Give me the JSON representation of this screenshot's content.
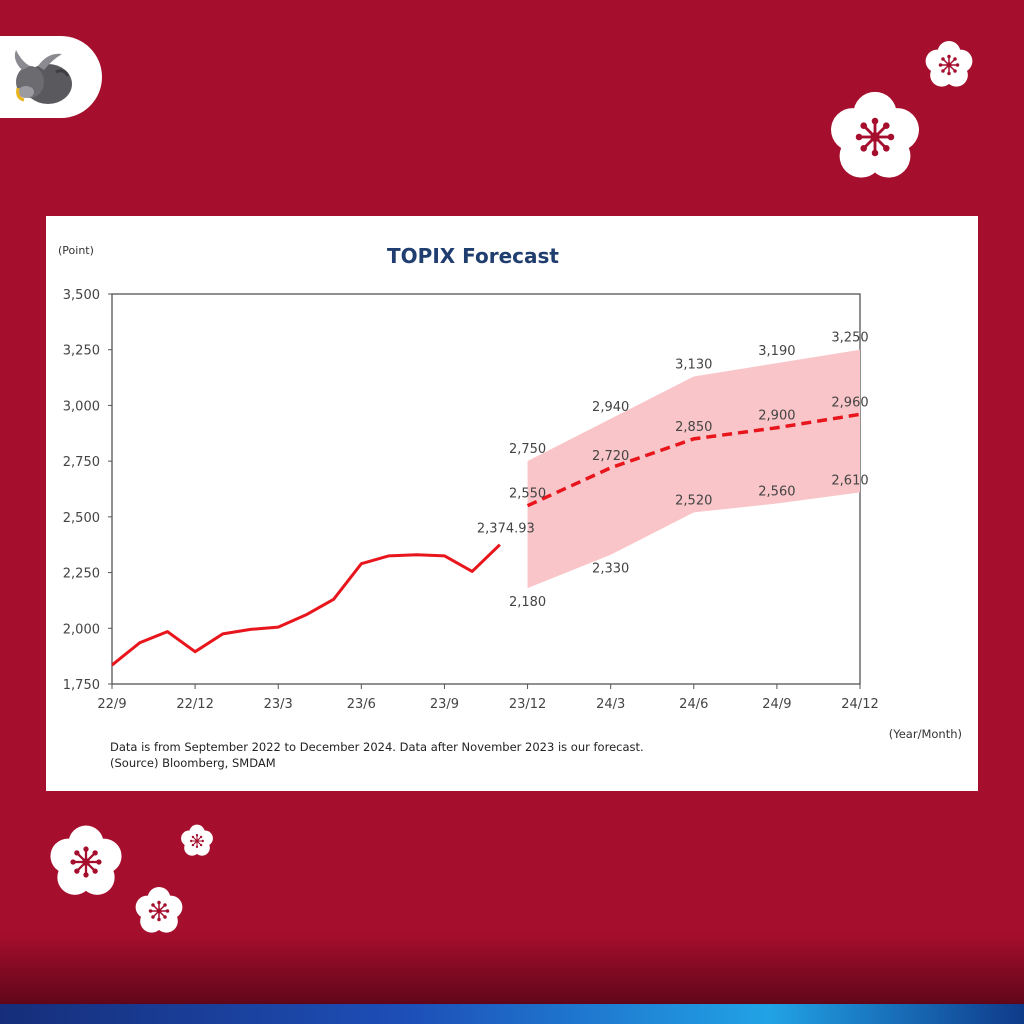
{
  "chart_data": {
    "type": "line",
    "title": "TOPIX Forecast",
    "ylabel": "(Point)",
    "xlabel": "(Year/Month)",
    "ylim": [
      1750,
      3500
    ],
    "yticks": [
      "1,750",
      "2,000",
      "2,250",
      "2,500",
      "2,750",
      "3,000",
      "3,250",
      "3,500"
    ],
    "ytick_values": [
      1750,
      2000,
      2250,
      2500,
      2750,
      3000,
      3250,
      3500
    ],
    "xticks": [
      "22/9",
      "22/12",
      "23/3",
      "23/6",
      "23/9",
      "23/12",
      "24/3",
      "24/6",
      "24/9",
      "24/12"
    ],
    "x_range": [
      0,
      27
    ],
    "grid": false,
    "actual": {
      "x": [
        0,
        1,
        2,
        3,
        4,
        5,
        6,
        7,
        8,
        9,
        10,
        11,
        12,
        13,
        14
      ],
      "values": [
        1835,
        1935,
        1985,
        1895,
        1975,
        1995,
        2005,
        2060,
        2130,
        2290,
        2325,
        2330,
        2325,
        2255,
        2374.93
      ],
      "color": "#e8161c"
    },
    "forecast": {
      "x": [
        15,
        18,
        21,
        24,
        27
      ],
      "mid": [
        2550,
        2720,
        2850,
        2900,
        2960
      ],
      "upper": [
        2750,
        2940,
        3130,
        3190,
        3250
      ],
      "lower": [
        2180,
        2330,
        2520,
        2560,
        2610
      ],
      "color": "#e8161c",
      "band_color": "#f9c5c8"
    },
    "data_labels": {
      "last_actual": "2,374.93",
      "mid": [
        "2,550",
        "2,720",
        "2,850",
        "2,900",
        "2,960"
      ],
      "upper": [
        "2,750",
        "2,940",
        "3,130",
        "3,190",
        "3,250"
      ],
      "lower": [
        "2,180",
        "2,330",
        "2,520",
        "2,560",
        "2,610"
      ]
    }
  },
  "notes": {
    "line1": "Data is from September 2022 to December 2024. Data after November 2023 is our forecast.",
    "line2": "(Source) Bloomberg, SMDAM"
  },
  "colors": {
    "background": "#a50e2d",
    "title": "#1f3d6e",
    "flower": "#ffffff",
    "flower_center": "#a50e2d"
  },
  "icons": {
    "logo": "bull-icon",
    "decor": "plum-blossom-icon"
  }
}
